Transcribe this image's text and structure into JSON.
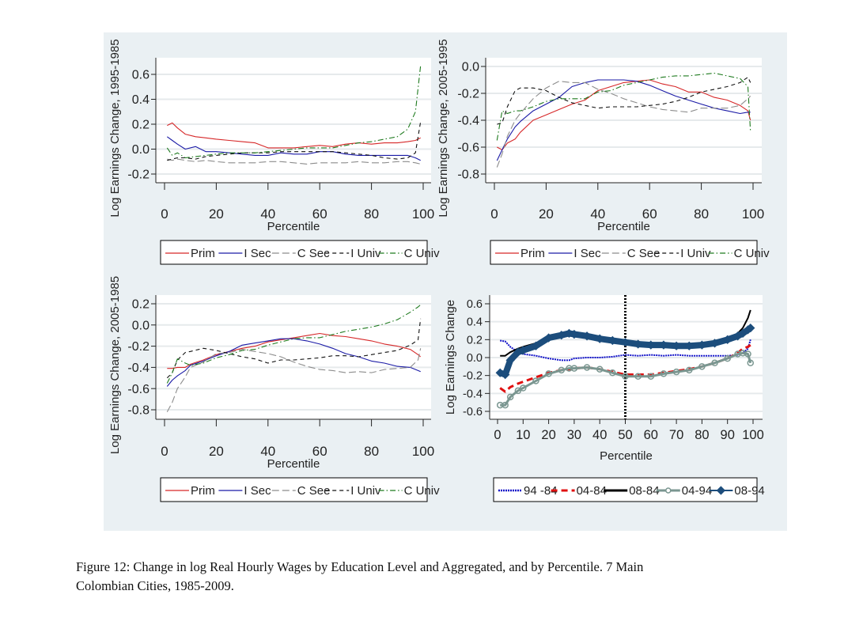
{
  "caption": {
    "line1": "Figure 12: Change in log Real Hourly Wages by Education Level and Aggregated, and by Percentile. 7 Main",
    "line2": "Colombian Cities, 1985-2009."
  },
  "colors": {
    "panel_bg": "#eaf0f3",
    "plot_bg": "#ffffff",
    "grid": "#e6eaec",
    "prim": "#d62728",
    "isec": "#1a1aa6",
    "csec": "#8c8c8c",
    "iuniv": "#111111",
    "cuniv": "#1e7a1e",
    "s9484": "#1010c8",
    "s0484": "#e01010",
    "s0884": "#000000",
    "s0494": "#7a9690",
    "s0894": "#1c4d7c"
  },
  "chart_data": [
    {
      "type": "line",
      "title": "",
      "xlabel": "Percentile",
      "ylabel": "Log Earnings Change, 1995-1985",
      "xlim": [
        0,
        100
      ],
      "ylim": [
        -0.27,
        0.74
      ],
      "xticks": [
        0,
        20,
        40,
        60,
        80,
        100
      ],
      "yticks": [
        0.6,
        0.4,
        0.2,
        0.0,
        -0.2
      ],
      "ytick_labels": [
        "0.6",
        "0.4",
        "0.2",
        "0.0",
        "-0.2"
      ],
      "grid": true,
      "legend_position": "bottom",
      "x": [
        1,
        3,
        5,
        8,
        12,
        16,
        20,
        25,
        30,
        35,
        40,
        45,
        50,
        55,
        60,
        65,
        70,
        75,
        80,
        85,
        90,
        94,
        97,
        99
      ],
      "series": [
        {
          "name": "Prim",
          "legend_label": "Prim",
          "style": "solid",
          "color_key": "prim",
          "values": [
            0.19,
            0.21,
            0.17,
            0.12,
            0.1,
            0.09,
            0.08,
            0.07,
            0.06,
            0.05,
            0.01,
            0.01,
            0.01,
            0.02,
            0.03,
            0.02,
            0.04,
            0.05,
            0.04,
            0.05,
            0.05,
            0.06,
            0.07,
            0.09
          ]
        },
        {
          "name": "I Sec",
          "legend_label": "I Sec",
          "style": "solid",
          "color_key": "isec",
          "values": [
            0.1,
            0.07,
            0.04,
            0.0,
            0.02,
            -0.02,
            -0.02,
            -0.03,
            -0.04,
            -0.05,
            -0.05,
            -0.03,
            -0.04,
            -0.04,
            -0.02,
            -0.02,
            -0.04,
            -0.05,
            -0.05,
            -0.05,
            -0.05,
            -0.05,
            -0.07,
            -0.09
          ]
        },
        {
          "name": "C Sec",
          "legend_label": "C Sec",
          "style": "longdash",
          "color_key": "csec",
          "values": [
            -0.08,
            -0.09,
            -0.08,
            -0.09,
            -0.1,
            -0.09,
            -0.1,
            -0.11,
            -0.11,
            -0.11,
            -0.1,
            -0.1,
            -0.11,
            -0.12,
            -0.11,
            -0.11,
            -0.11,
            -0.1,
            -0.11,
            -0.11,
            -0.1,
            -0.1,
            -0.11,
            -0.12
          ]
        },
        {
          "name": "I Univ",
          "legend_label": "I Univ",
          "style": "dash",
          "color_key": "iuniv",
          "values": [
            -0.09,
            -0.08,
            -0.07,
            -0.07,
            -0.08,
            -0.06,
            -0.05,
            -0.04,
            -0.03,
            -0.03,
            -0.03,
            -0.02,
            -0.02,
            -0.02,
            -0.02,
            -0.02,
            -0.03,
            -0.04,
            -0.05,
            -0.07,
            -0.08,
            -0.07,
            -0.03,
            0.22
          ]
        },
        {
          "name": "C Univ",
          "legend_label": "C Univ",
          "style": "dashdot",
          "color_key": "cuniv",
          "values": [
            0.01,
            -0.05,
            -0.03,
            -0.07,
            -0.06,
            -0.05,
            -0.04,
            -0.03,
            -0.03,
            -0.03,
            -0.02,
            -0.01,
            0.0,
            0.01,
            0.01,
            0.01,
            0.03,
            0.05,
            0.06,
            0.08,
            0.1,
            0.16,
            0.3,
            0.67
          ]
        }
      ]
    },
    {
      "type": "line",
      "title": "",
      "xlabel": "Percentile",
      "ylabel": "Log Earnings Change, 2005-1995",
      "xlim": [
        0,
        100
      ],
      "ylim": [
        -0.87,
        0.06
      ],
      "xticks": [
        0,
        20,
        40,
        60,
        80,
        100
      ],
      "yticks": [
        0.0,
        -0.2,
        -0.4,
        -0.6,
        -0.8
      ],
      "ytick_labels": [
        "0.0",
        "-0.2",
        "-0.4",
        "-0.6",
        "-0.8"
      ],
      "grid": true,
      "legend_position": "bottom",
      "x": [
        1,
        3,
        5,
        8,
        10,
        15,
        20,
        25,
        30,
        35,
        40,
        45,
        50,
        55,
        60,
        65,
        70,
        75,
        80,
        85,
        90,
        95,
        98,
        99
      ],
      "series": [
        {
          "name": "Prim",
          "legend_label": "Prim",
          "style": "solid",
          "color_key": "prim",
          "values": [
            -0.6,
            -0.62,
            -0.57,
            -0.54,
            -0.49,
            -0.4,
            -0.36,
            -0.32,
            -0.28,
            -0.25,
            -0.18,
            -0.15,
            -0.12,
            -0.11,
            -0.1,
            -0.13,
            -0.15,
            -0.19,
            -0.19,
            -0.23,
            -0.25,
            -0.29,
            -0.33,
            -0.4
          ]
        },
        {
          "name": "I Sec",
          "legend_label": "I Sec",
          "style": "solid",
          "color_key": "isec",
          "values": [
            -0.7,
            -0.62,
            -0.54,
            -0.45,
            -0.41,
            -0.33,
            -0.28,
            -0.23,
            -0.15,
            -0.12,
            -0.1,
            -0.1,
            -0.1,
            -0.11,
            -0.14,
            -0.18,
            -0.22,
            -0.25,
            -0.28,
            -0.31,
            -0.33,
            -0.35,
            -0.34,
            -0.34
          ]
        },
        {
          "name": "C Sec",
          "legend_label": "C See",
          "style": "longdash",
          "color_key": "csec",
          "values": [
            -0.75,
            -0.65,
            -0.52,
            -0.4,
            -0.35,
            -0.24,
            -0.16,
            -0.11,
            -0.12,
            -0.12,
            -0.17,
            -0.2,
            -0.24,
            -0.27,
            -0.3,
            -0.32,
            -0.33,
            -0.34,
            -0.31,
            -0.31,
            -0.31,
            -0.29,
            -0.24,
            -0.22
          ]
        },
        {
          "name": "I Univ",
          "legend_label": "I Univ",
          "style": "dash",
          "color_key": "iuniv",
          "values": [
            -0.43,
            -0.42,
            -0.3,
            -0.18,
            -0.16,
            -0.16,
            -0.18,
            -0.23,
            -0.27,
            -0.29,
            -0.31,
            -0.3,
            -0.3,
            -0.3,
            -0.29,
            -0.28,
            -0.26,
            -0.23,
            -0.19,
            -0.17,
            -0.15,
            -0.12,
            -0.08,
            -0.12
          ]
        },
        {
          "name": "C Univ",
          "legend_label": "C Univ",
          "style": "dashdot",
          "color_key": "cuniv",
          "values": [
            -0.55,
            -0.33,
            -0.35,
            -0.33,
            -0.33,
            -0.3,
            -0.26,
            -0.24,
            -0.24,
            -0.24,
            -0.19,
            -0.18,
            -0.14,
            -0.12,
            -0.1,
            -0.08,
            -0.07,
            -0.07,
            -0.06,
            -0.05,
            -0.07,
            -0.09,
            -0.15,
            -0.48
          ]
        }
      ]
    },
    {
      "type": "line",
      "title": "",
      "xlabel": "Percentile",
      "ylabel": "Log Earnings Change, 2005-1985",
      "xlim": [
        0,
        100
      ],
      "ylim": [
        -0.89,
        0.28
      ],
      "xticks": [
        0,
        20,
        40,
        60,
        80,
        100
      ],
      "yticks": [
        0.2,
        0.0,
        -0.2,
        -0.4,
        -0.6,
        -0.8
      ],
      "ytick_labels": [
        "0.2",
        "0.0",
        "-0.2",
        "-0.4",
        "-0.6",
        "-0.8"
      ],
      "grid": true,
      "legend_position": "bottom",
      "x": [
        1,
        3,
        5,
        8,
        10,
        15,
        20,
        25,
        30,
        35,
        40,
        45,
        50,
        55,
        60,
        65,
        70,
        75,
        80,
        85,
        90,
        95,
        98,
        99
      ],
      "series": [
        {
          "name": "Prim",
          "legend_label": "Prim",
          "style": "solid",
          "color_key": "prim",
          "values": [
            -0.41,
            -0.41,
            -0.4,
            -0.4,
            -0.37,
            -0.33,
            -0.28,
            -0.25,
            -0.22,
            -0.2,
            -0.16,
            -0.14,
            -0.12,
            -0.1,
            -0.08,
            -0.1,
            -0.11,
            -0.13,
            -0.15,
            -0.18,
            -0.2,
            -0.23,
            -0.28,
            -0.3
          ]
        },
        {
          "name": "I Sec",
          "legend_label": "I Sec",
          "style": "solid",
          "color_key": "isec",
          "values": [
            -0.58,
            -0.52,
            -0.48,
            -0.43,
            -0.38,
            -0.34,
            -0.29,
            -0.25,
            -0.19,
            -0.17,
            -0.15,
            -0.13,
            -0.13,
            -0.15,
            -0.18,
            -0.22,
            -0.27,
            -0.3,
            -0.34,
            -0.36,
            -0.39,
            -0.4,
            -0.43,
            -0.44
          ]
        },
        {
          "name": "C Sec",
          "legend_label": "C See",
          "style": "longdash",
          "color_key": "csec",
          "values": [
            -0.82,
            -0.73,
            -0.6,
            -0.49,
            -0.4,
            -0.35,
            -0.27,
            -0.26,
            -0.23,
            -0.25,
            -0.27,
            -0.3,
            -0.35,
            -0.39,
            -0.42,
            -0.43,
            -0.45,
            -0.44,
            -0.45,
            -0.42,
            -0.41,
            -0.4,
            -0.33,
            -0.22
          ]
        },
        {
          "name": "I Univ",
          "legend_label": "I Univ",
          "style": "dash",
          "color_key": "iuniv",
          "values": [
            -0.5,
            -0.45,
            -0.33,
            -0.26,
            -0.25,
            -0.22,
            -0.24,
            -0.27,
            -0.3,
            -0.32,
            -0.36,
            -0.33,
            -0.33,
            -0.32,
            -0.31,
            -0.29,
            -0.29,
            -0.3,
            -0.28,
            -0.26,
            -0.24,
            -0.19,
            -0.14,
            0.06
          ]
        },
        {
          "name": "C Univ",
          "legend_label": "C Univ",
          "style": "dashdot",
          "color_key": "cuniv",
          "values": [
            -0.55,
            -0.45,
            -0.32,
            -0.36,
            -0.38,
            -0.36,
            -0.31,
            -0.28,
            -0.24,
            -0.23,
            -0.19,
            -0.16,
            -0.13,
            -0.12,
            -0.12,
            -0.09,
            -0.06,
            -0.04,
            -0.02,
            0.01,
            0.05,
            0.12,
            0.17,
            0.19
          ]
        }
      ]
    },
    {
      "type": "line",
      "title": "",
      "xlabel": "Percentile",
      "ylabel": "Log Earnings Change",
      "xlim": [
        -3,
        103
      ],
      "ylim": [
        -0.69,
        0.71
      ],
      "xticks": [
        0,
        10,
        20,
        30,
        40,
        50,
        60,
        70,
        80,
        90,
        100
      ],
      "yticks": [
        0.6,
        0.4,
        0.2,
        0.0,
        -0.2,
        -0.4,
        -0.6
      ],
      "ytick_labels": [
        "0.6",
        "0.4",
        "0.2",
        "0.0",
        "-0.2",
        "-0.4",
        "-0.6"
      ],
      "grid": true,
      "legend_position": "bottom",
      "reference_line_x": 50,
      "x": [
        1,
        3,
        5,
        8,
        10,
        15,
        20,
        25,
        28,
        30,
        35,
        40,
        45,
        50,
        55,
        60,
        65,
        70,
        75,
        80,
        85,
        90,
        94,
        96,
        98,
        99
      ],
      "series": [
        {
          "name": "94-84",
          "legend_label": "94 -84",
          "style": "dotline",
          "color_key": "s9484",
          "values": [
            0.19,
            0.18,
            0.12,
            0.06,
            0.04,
            0.02,
            -0.01,
            -0.03,
            -0.03,
            -0.01,
            0.0,
            0.0,
            0.01,
            0.03,
            0.02,
            0.03,
            0.02,
            0.03,
            0.02,
            0.02,
            0.02,
            0.02,
            0.03,
            0.05,
            0.1,
            0.2
          ]
        },
        {
          "name": "04-84",
          "legend_label": "04-84",
          "style": "bigdash",
          "color_key": "s0484",
          "values": [
            -0.34,
            -0.38,
            -0.33,
            -0.29,
            -0.27,
            -0.22,
            -0.17,
            -0.14,
            -0.13,
            -0.12,
            -0.11,
            -0.13,
            -0.16,
            -0.19,
            -0.19,
            -0.19,
            -0.17,
            -0.15,
            -0.13,
            -0.1,
            -0.06,
            -0.01,
            0.05,
            0.1,
            0.12,
            0.14
          ]
        },
        {
          "name": "08-84",
          "legend_label": "08-84",
          "style": "thick",
          "color_key": "s0884",
          "values": [
            0.02,
            0.02,
            0.06,
            0.1,
            0.12,
            0.16,
            0.22,
            0.26,
            0.27,
            0.26,
            0.24,
            0.22,
            0.19,
            0.17,
            0.15,
            0.14,
            0.14,
            0.12,
            0.13,
            0.14,
            0.17,
            0.21,
            0.27,
            0.33,
            0.44,
            0.53
          ]
        },
        {
          "name": "04-94",
          "legend_label": "04-94",
          "style": "circles",
          "color_key": "s0494",
          "values": [
            -0.53,
            -0.53,
            -0.44,
            -0.37,
            -0.34,
            -0.26,
            -0.18,
            -0.14,
            -0.12,
            -0.12,
            -0.11,
            -0.13,
            -0.17,
            -0.21,
            -0.21,
            -0.21,
            -0.18,
            -0.16,
            -0.14,
            -0.1,
            -0.06,
            -0.01,
            0.04,
            0.05,
            0.04,
            -0.06
          ]
        },
        {
          "name": "08-94",
          "legend_label": "08-94",
          "style": "diamonds",
          "color_key": "s0894",
          "values": [
            -0.17,
            -0.19,
            -0.03,
            0.06,
            0.08,
            0.13,
            0.22,
            0.25,
            0.27,
            0.26,
            0.24,
            0.21,
            0.19,
            0.17,
            0.15,
            0.14,
            0.14,
            0.13,
            0.13,
            0.14,
            0.16,
            0.2,
            0.24,
            0.27,
            0.31,
            0.33
          ]
        }
      ]
    }
  ]
}
